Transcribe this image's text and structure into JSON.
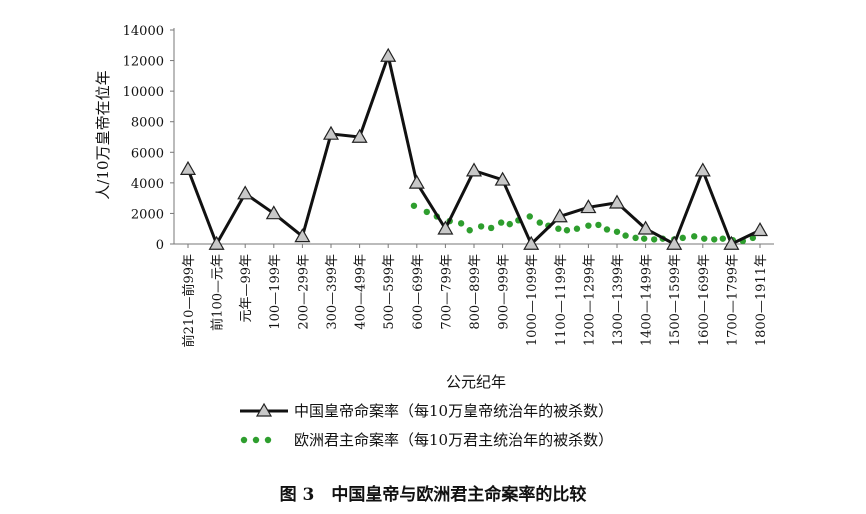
{
  "chart_data": {
    "type": "line",
    "caption": "图 3　中国皇帝与欧洲君主命案率的比较",
    "xlabel": "公元纪年",
    "ylabel": "人/10万皇帝在位年",
    "ylim": [
      0,
      14000
    ],
    "yticks": [
      0,
      2000,
      4000,
      6000,
      8000,
      10000,
      12000,
      14000
    ],
    "grid": false,
    "legend_position": "bottom",
    "categories": [
      "前210—前99年",
      "前100—元年",
      "元年—99年",
      "100—199年",
      "200—299年",
      "300—399年",
      "400—499年",
      "500—599年",
      "600—699年",
      "700—799年",
      "800—899年",
      "900—999年",
      "1000—1099年",
      "1100—1199年",
      "1200—1299年",
      "1300—1399年",
      "1400—1499年",
      "1500—1599年",
      "1600—1699年",
      "1700—1799年",
      "1800—1911年"
    ],
    "series": [
      {
        "name": "中国皇帝命案率（每10万皇帝统治年的被杀数）",
        "color": "#111111",
        "marker": "triangle",
        "values": [
          4900,
          0,
          3300,
          2000,
          500,
          7200,
          7000,
          12300,
          4000,
          1000,
          4800,
          4200,
          0,
          1800,
          2400,
          2700,
          1000,
          0,
          4800,
          0,
          900
        ]
      },
      {
        "name": "欧洲君主命案率（每10万君主统治年的被杀数）",
        "color": "#2e9e2e",
        "marker": "dots",
        "x": [
          7.9,
          8.35,
          8.7,
          9.15,
          9.55,
          9.85,
          10.25,
          10.6,
          10.95,
          11.25,
          11.55,
          11.95,
          12.3,
          12.6,
          12.95,
          13.25,
          13.6,
          14.0,
          14.35,
          14.65,
          15.0,
          15.3,
          15.65,
          15.95,
          16.3,
          16.6,
          17.0,
          17.3,
          17.7,
          18.05,
          18.4,
          18.7,
          19.05,
          19.4,
          19.75
        ],
        "values": [
          2500,
          2100,
          1800,
          1500,
          1350,
          900,
          1150,
          1050,
          1400,
          1300,
          1550,
          1800,
          1400,
          1200,
          1000,
          900,
          1000,
          1200,
          1250,
          950,
          800,
          550,
          400,
          350,
          300,
          350,
          300,
          400,
          500,
          350,
          300,
          350,
          250,
          200,
          400
        ]
      }
    ]
  }
}
